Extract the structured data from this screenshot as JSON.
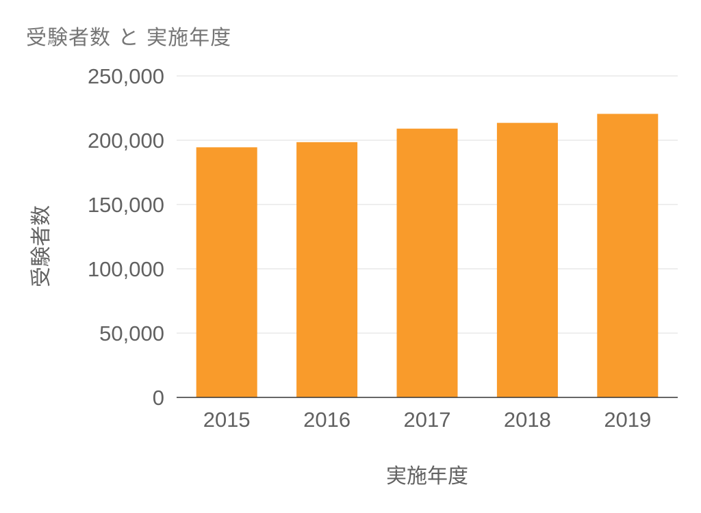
{
  "chart_data": {
    "type": "bar",
    "title": "受験者数 と 実施年度",
    "xlabel": "実施年度",
    "ylabel": "受験者数",
    "categories": [
      "2015",
      "2016",
      "2017",
      "2018",
      "2019"
    ],
    "values": [
      194500,
      198500,
      209000,
      213500,
      220500
    ],
    "ylim": [
      0,
      250000
    ],
    "yticks": [
      0,
      50000,
      100000,
      150000,
      200000,
      250000
    ],
    "ytick_labels": [
      "0",
      "50,000",
      "100,000",
      "150,000",
      "200,000",
      "250,000"
    ],
    "grid": true,
    "legend": "none",
    "bar_color": "#F99B2B",
    "grid_color": "#DCDCDC",
    "axis_color": "#333333"
  }
}
